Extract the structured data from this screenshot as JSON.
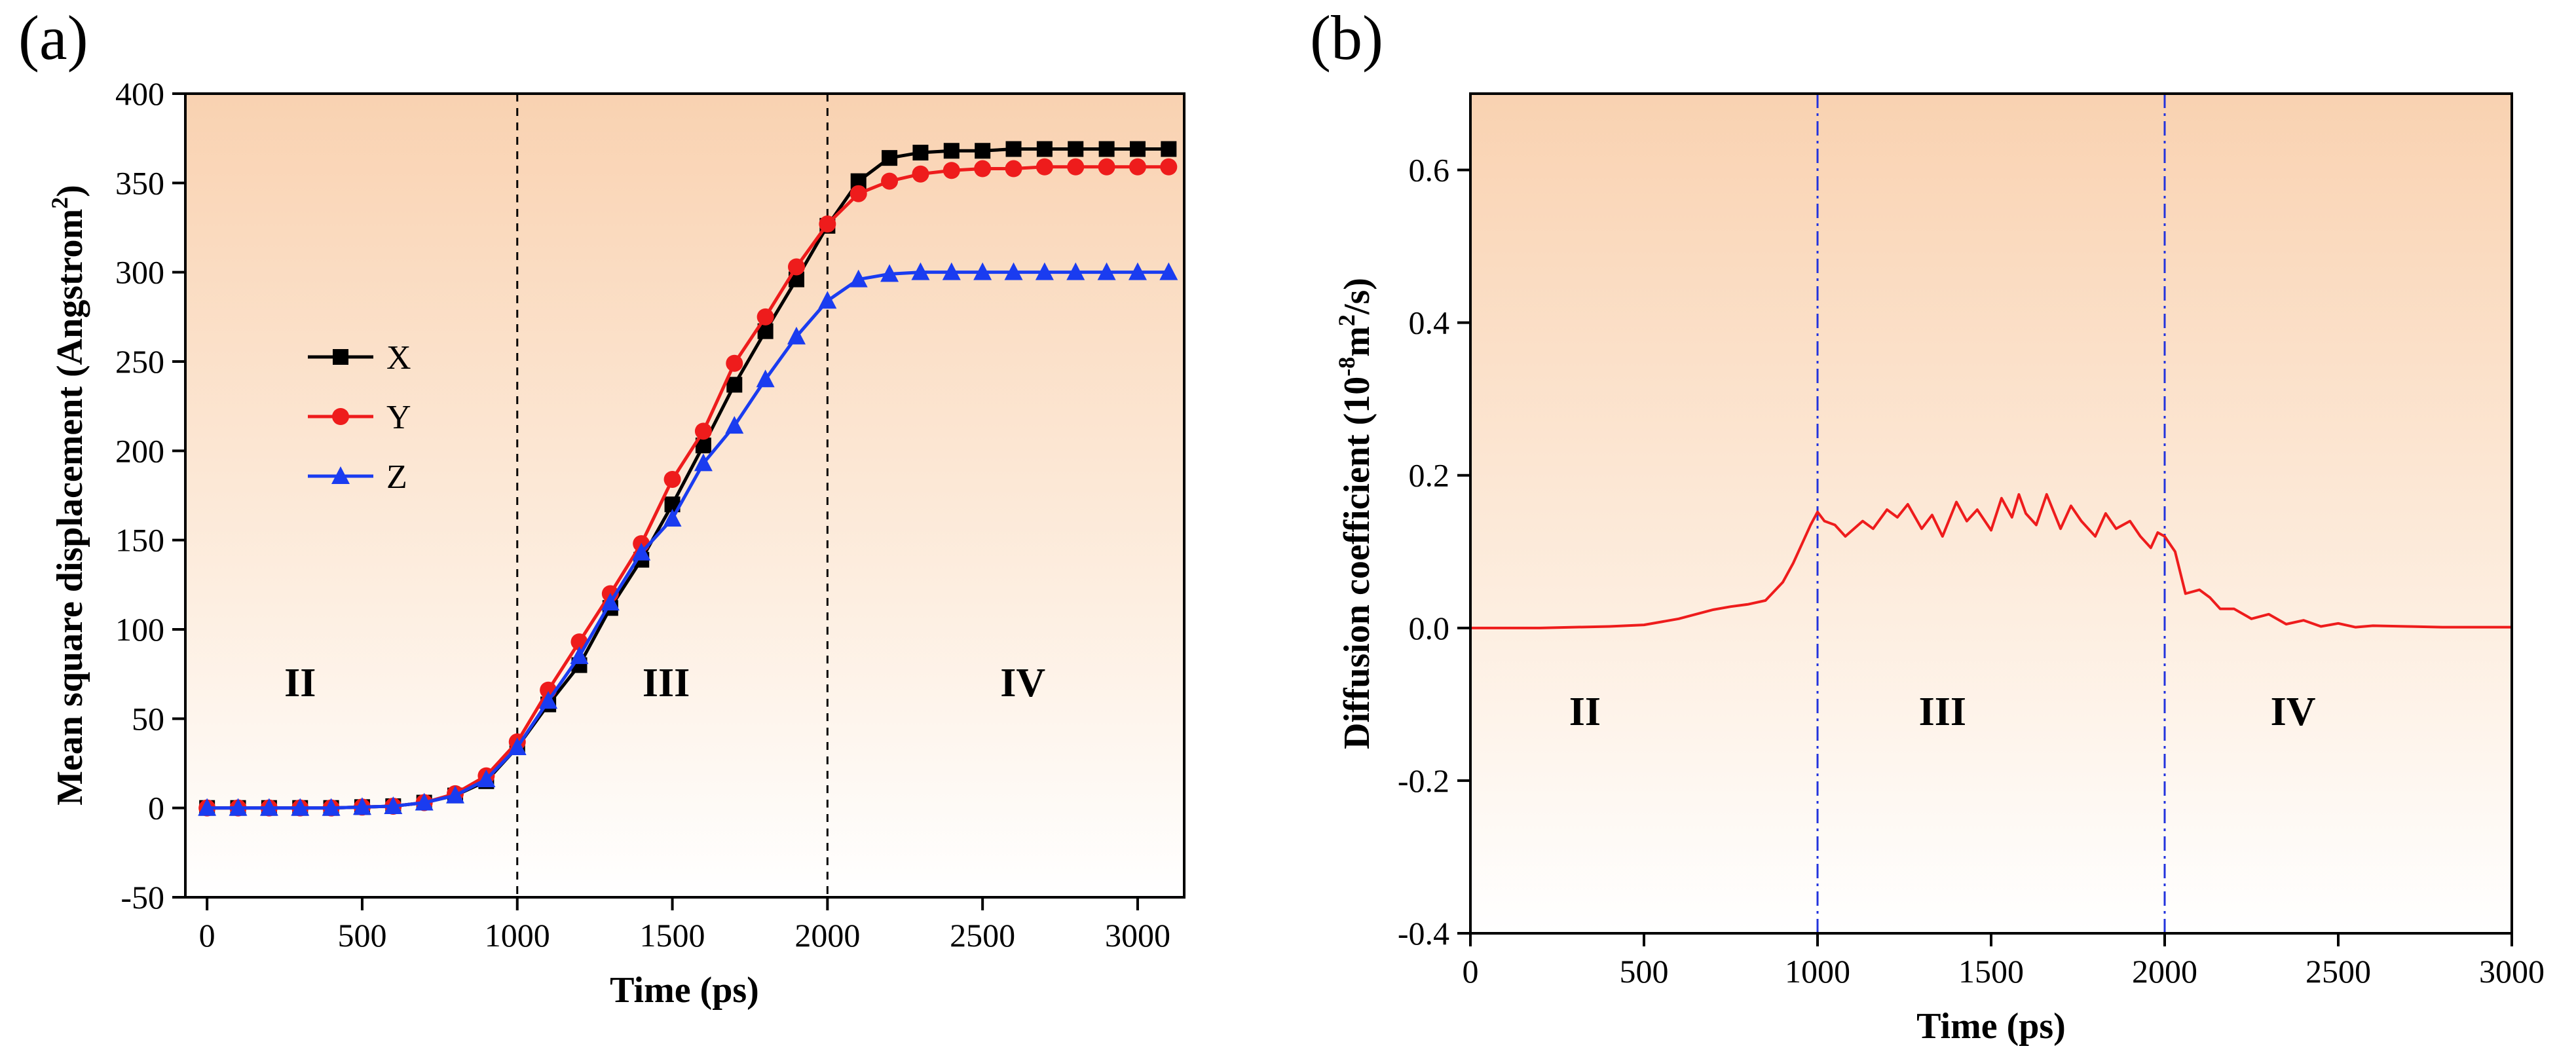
{
  "chart_data": [
    {
      "panel_label": "(a)",
      "type": "line",
      "xlabel": "Time (ps)",
      "ylabel_main": "Mean square displacement (Angstrom",
      "ylabel_sup": "2",
      "ylabel_close": ")",
      "xlim": [
        -70,
        3150
      ],
      "ylim": [
        -50,
        400
      ],
      "xticks": [
        0,
        500,
        1000,
        1500,
        2000,
        2500,
        3000
      ],
      "yticks": [
        -50,
        0,
        50,
        100,
        150,
        200,
        250,
        300,
        350,
        400
      ],
      "vlines": [
        1000,
        2000
      ],
      "regions": [
        {
          "label": "II",
          "x": 300,
          "y": 70
        },
        {
          "label": "III",
          "x": 1480,
          "y": 70
        },
        {
          "label": "IV",
          "x": 2630,
          "y": 70
        }
      ],
      "legend_position": "center-left",
      "x": [
        0,
        100,
        200,
        300,
        400,
        500,
        600,
        700,
        800,
        900,
        1000,
        1100,
        1200,
        1300,
        1400,
        1500,
        1600,
        1700,
        1800,
        1900,
        2000,
        2100,
        2200,
        2300,
        2400,
        2500,
        2600,
        2700,
        2800,
        2900,
        3000,
        3100
      ],
      "series": [
        {
          "name": "X",
          "color": "#000000",
          "marker": "square",
          "values": [
            0,
            0,
            0,
            0,
            0,
            0.5,
            1,
            3,
            7,
            15,
            34,
            58,
            80,
            112,
            139,
            170,
            203,
            237,
            267,
            296,
            326,
            351,
            364,
            367,
            368,
            368,
            369,
            369,
            369,
            369,
            369,
            369
          ]
        },
        {
          "name": "Y",
          "color": "#ee1c1c",
          "marker": "circle",
          "values": [
            0,
            0,
            0,
            0,
            0,
            0.5,
            1,
            3,
            8,
            18,
            37,
            66,
            93,
            120,
            148,
            184,
            211,
            249,
            275,
            303,
            327,
            344,
            351,
            355,
            357,
            358,
            358,
            359,
            359,
            359,
            359,
            359
          ]
        },
        {
          "name": "Z",
          "color": "#1a3cf0",
          "marker": "triangle",
          "values": [
            0,
            0,
            0,
            0,
            0,
            0.5,
            1,
            3,
            7,
            16,
            34,
            60,
            85,
            115,
            143,
            162,
            193,
            214,
            240,
            264,
            284,
            296,
            299,
            300,
            300,
            300,
            300,
            300,
            300,
            300,
            300,
            300
          ]
        }
      ]
    },
    {
      "panel_label": "(b)",
      "type": "line",
      "xlabel": "Time (ps)",
      "ylabel_main": "Diffusion coefficient (10",
      "ylabel_sup1": "-8",
      "ylabel_mid": "m",
      "ylabel_sup2": "2",
      "ylabel_close": "/s)",
      "xlim": [
        0,
        3000
      ],
      "ylim": [
        -0.4,
        0.7
      ],
      "xticks": [
        0,
        500,
        1000,
        1500,
        2000,
        2500,
        3000
      ],
      "yticks": [
        -0.4,
        -0.2,
        0.0,
        0.2,
        0.4,
        0.6
      ],
      "ytick_labels": [
        "-0.4",
        "-0.2",
        "0.0",
        "0.2",
        "0.4",
        "0.6"
      ],
      "vlines": [
        1000,
        2000
      ],
      "regions": [
        {
          "label": "II",
          "x": 330,
          "y": -0.11
        },
        {
          "label": "III",
          "x": 1360,
          "y": -0.11
        },
        {
          "label": "IV",
          "x": 2370,
          "y": -0.11
        }
      ],
      "series": [
        {
          "name": "Diffusion coefficient",
          "color": "#ee1c1c",
          "x": [
            0,
            200,
            400,
            500,
            550,
            600,
            650,
            700,
            750,
            800,
            850,
            900,
            930,
            960,
            980,
            1000,
            1020,
            1050,
            1080,
            1100,
            1130,
            1160,
            1200,
            1230,
            1260,
            1300,
            1330,
            1360,
            1400,
            1430,
            1460,
            1500,
            1530,
            1560,
            1580,
            1600,
            1630,
            1660,
            1700,
            1730,
            1760,
            1800,
            1830,
            1860,
            1900,
            1930,
            1960,
            1980,
            2000,
            2030,
            2060,
            2100,
            2130,
            2160,
            2200,
            2250,
            2300,
            2350,
            2400,
            2450,
            2500,
            2550,
            2600,
            2700,
            2800,
            2900,
            3000
          ],
          "values": [
            0,
            0,
            0.002,
            0.004,
            0.008,
            0.012,
            0.018,
            0.024,
            0.028,
            0.031,
            0.036,
            0.06,
            0.085,
            0.115,
            0.135,
            0.152,
            0.14,
            0.135,
            0.12,
            0.128,
            0.14,
            0.13,
            0.155,
            0.145,
            0.162,
            0.13,
            0.148,
            0.12,
            0.165,
            0.14,
            0.155,
            0.128,
            0.17,
            0.145,
            0.175,
            0.15,
            0.135,
            0.175,
            0.13,
            0.16,
            0.14,
            0.12,
            0.15,
            0.13,
            0.14,
            0.12,
            0.105,
            0.125,
            0.12,
            0.1,
            0.045,
            0.05,
            0.04,
            0.025,
            0.025,
            0.012,
            0.018,
            0.005,
            0.01,
            0.002,
            0.006,
            0.001,
            0.003,
            0.002,
            0.001,
            0.001,
            0.001
          ]
        }
      ]
    }
  ]
}
